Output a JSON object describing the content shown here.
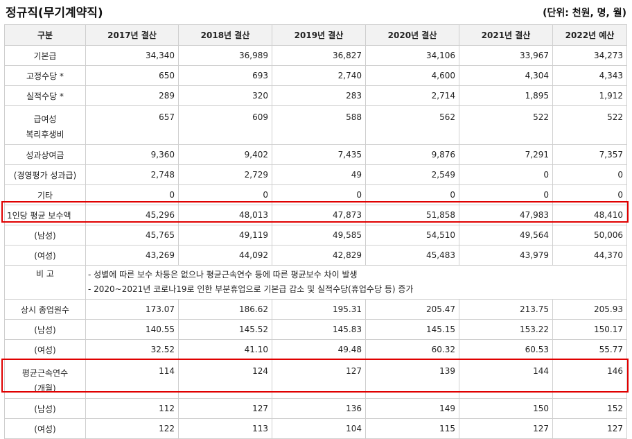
{
  "title": "정규직(무기계약직)",
  "unit": "(단위: 천원, 명, 월)",
  "headers": [
    "구분",
    "2017년 결산",
    "2018년 결산",
    "2019년 결산",
    "2020년 결산",
    "2021년 결산",
    "2022년 예산"
  ],
  "rows": [
    {
      "label": "기본급",
      "values": [
        "34,340",
        "36,989",
        "36,827",
        "34,106",
        "33,967",
        "34,273"
      ]
    },
    {
      "label": "고정수당 *",
      "values": [
        "650",
        "693",
        "2,740",
        "4,600",
        "4,304",
        "4,343"
      ]
    },
    {
      "label": "실적수당 *",
      "values": [
        "289",
        "320",
        "283",
        "2,714",
        "1,895",
        "1,912"
      ]
    },
    {
      "label": "급여성",
      "label2": "복리후생비",
      "values": [
        "657",
        "609",
        "588",
        "562",
        "522",
        "522"
      ]
    },
    {
      "label": "성과상여금",
      "values": [
        "9,360",
        "9,402",
        "7,435",
        "9,876",
        "7,291",
        "7,357"
      ]
    },
    {
      "label": "(경영평가 성과급)",
      "values": [
        "2,748",
        "2,729",
        "49",
        "2,549",
        "0",
        "0"
      ]
    },
    {
      "label": "기타",
      "values": [
        "0",
        "0",
        "0",
        "0",
        "0",
        "0"
      ]
    },
    {
      "label": "1인당 평균 보수액",
      "values": [
        "45,296",
        "48,013",
        "47,873",
        "51,858",
        "47,983",
        "48,410"
      ]
    },
    {
      "label": "(남성)",
      "values": [
        "45,765",
        "49,119",
        "49,585",
        "54,510",
        "49,564",
        "50,006"
      ]
    },
    {
      "label": "(여성)",
      "values": [
        "43,269",
        "44,092",
        "42,829",
        "45,483",
        "43,979",
        "44,370"
      ]
    },
    {
      "label": "비 고",
      "remarks": [
        "- 성별에 따른 보수 차등은 없으나 평균근속연수 등에 따른 평균보수 차이 발생",
        "- 2020~2021년 코로나19로 인한 부분휴업으로 기본급 감소 및 실적수당(휴업수당 등) 증가"
      ]
    },
    {
      "label": "상시 종업원수",
      "values": [
        "173.07",
        "186.62",
        "195.31",
        "205.47",
        "213.75",
        "205.93"
      ]
    },
    {
      "label": "(남성)",
      "values": [
        "140.55",
        "145.52",
        "145.83",
        "145.15",
        "153.22",
        "150.17"
      ]
    },
    {
      "label": "(여성)",
      "values": [
        "32.52",
        "41.10",
        "49.48",
        "60.32",
        "60.53",
        "55.77"
      ]
    },
    {
      "label": "평균근속연수",
      "label2": "(개월)",
      "values": [
        "114",
        "124",
        "127",
        "139",
        "144",
        "146"
      ]
    },
    {
      "label": "(남성)",
      "values": [
        "112",
        "127",
        "136",
        "149",
        "150",
        "152"
      ]
    },
    {
      "label": "(여성)",
      "values": [
        "122",
        "113",
        "104",
        "115",
        "127",
        "127"
      ]
    }
  ],
  "highlight_color": "#e00000"
}
